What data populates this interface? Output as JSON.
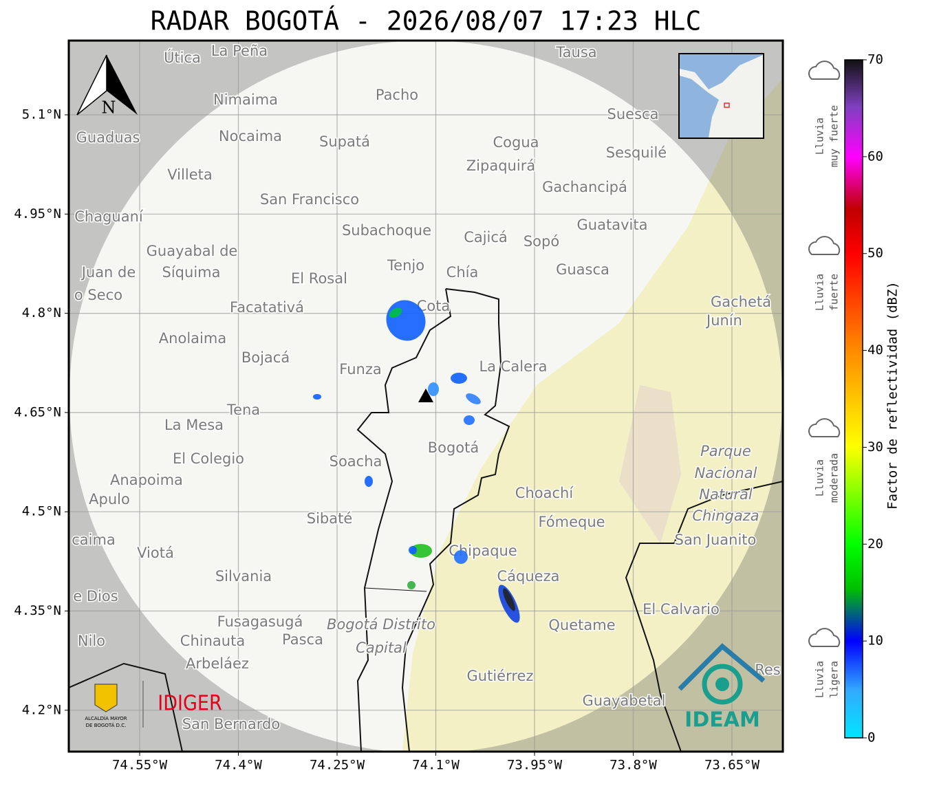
{
  "header": {
    "title": "RADAR BOGOTÁ - 2026/08/07 17:23 HLC"
  },
  "map": {
    "lon_ticks": [
      "74.55°W",
      "74.4°W",
      "74.25°W",
      "74.1°W",
      "73.95°W",
      "73.8°W",
      "73.65°W"
    ],
    "lat_ticks": [
      "5.1°N",
      "4.95°N",
      "4.8°N",
      "4.65°N",
      "4.5°N",
      "4.35°N",
      "4.2°N"
    ],
    "north_label": "N",
    "places": [
      "La Peña",
      "Útica",
      "Tausa",
      "Pacho",
      "Nimaima",
      "Suesca",
      "Guaduas",
      "Nocaima",
      "Supatá",
      "Cogua",
      "Sesquilé",
      "Zipaquirá",
      "Villeta",
      "Gachancipá",
      "San Francisco",
      "Chaguaní",
      "Guatavita",
      "Subachoque",
      "Cajicá",
      "Sopó",
      "Guayabal de",
      "Síquima",
      "Tenjo",
      "Chía",
      "Juan de",
      "Guasca",
      "El Rosal",
      "o Seco",
      "Cota",
      "Gachetá",
      "Junín",
      "Facatativá",
      "Anolaima",
      "Bojacá",
      "La Calera",
      "Funza",
      "Tena",
      "La Mesa",
      "Bogotá",
      "Parque",
      "Nacional",
      "Natural",
      "Chingaza",
      "El Colegio",
      "Soacha",
      "Anapoima",
      "Apulo",
      "Choachí",
      "Sibaté",
      "Fómeque",
      "San Juanito",
      "caima",
      "Viotá",
      "Chipaque",
      "Cáqueza",
      "Silvania",
      "e Dios",
      "El Calvario",
      "Fusagasugá",
      "Bogotá Distrito",
      "Capital",
      "Quetame",
      "Nilo",
      "Chinauta",
      "Pasca",
      "Arbeláez",
      "Gutiérrez",
      "Guayabetal",
      "San Bernardo",
      "Res"
    ]
  },
  "colorbar": {
    "label": "Factor de reflectividad (dBZ)",
    "lim": [
      0,
      70
    ],
    "ticks": [
      0,
      10,
      20,
      30,
      40,
      50,
      60,
      70
    ]
  },
  "legend": [
    {
      "lines": [
        "Lluvia",
        "muy fuerte"
      ]
    },
    {
      "lines": [
        "Lluvia",
        "fuerte"
      ]
    },
    {
      "lines": [
        "Lluvia",
        "moderada"
      ]
    },
    {
      "lines": [
        "Lluvia",
        "ligera"
      ]
    }
  ],
  "logos": {
    "alcaldia": [
      "ALCALDÍA MAYOR",
      "DE BOGOTÁ D.C."
    ],
    "idiger": "IDIGER",
    "ideam": "IDEAM"
  }
}
